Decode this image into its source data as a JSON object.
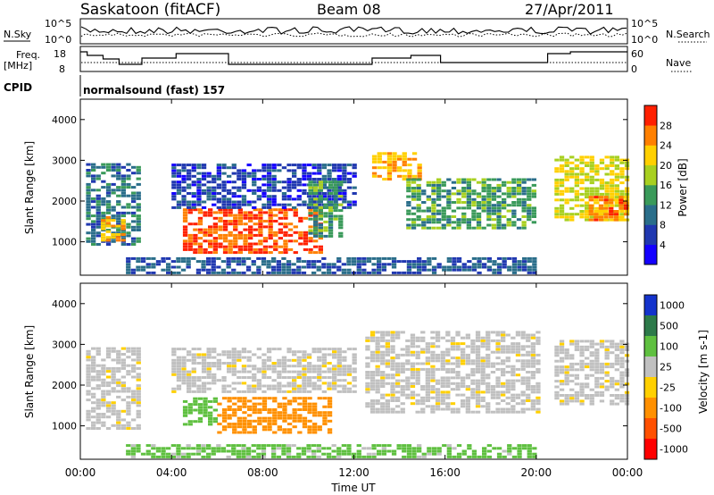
{
  "header": {
    "station": "Saskatoon (fitACF)",
    "beam": "Beam 08",
    "date": "27/Apr/2011"
  },
  "noise_panel": {
    "left_label": "N.Sky",
    "right_label": "N.Search",
    "ticks": [
      "10^5",
      "10^0"
    ]
  },
  "freq_panel": {
    "left_label_1": "Freq.",
    "left_label_2": "[MHz]",
    "left_ticks": [
      "18",
      "8"
    ],
    "right_label": "Nave",
    "right_ticks": [
      "60",
      "0"
    ]
  },
  "cpid": {
    "label": "CPID",
    "value": "normalsound (fast) 157"
  },
  "chart_data": [
    {
      "type": "heatmap",
      "title": "",
      "quantity": "Power",
      "unit": "[dB]",
      "colorbar_label": "Power [dB]",
      "xlabel": "Time UT",
      "ylabel": "Slant Range [km]",
      "xlim": [
        0,
        24
      ],
      "ylim": [
        180,
        4500
      ],
      "y_ticks": [
        "1000",
        "2000",
        "3000",
        "4000"
      ],
      "colorbar_ticks": [
        "4",
        "8",
        "12",
        "16",
        "20",
        "24",
        "28"
      ],
      "colorbar_colors": [
        "#1400ff",
        "#2038b0",
        "#2a6e8a",
        "#3a9a5a",
        "#a8d020",
        "#ffd000",
        "#ff8000",
        "#ff2000"
      ],
      "regions": [
        {
          "t0": 0.25,
          "t1": 2.6,
          "r0": 900,
          "r1": 2900,
          "level": 10
        },
        {
          "t0": 0.9,
          "t1": 2.0,
          "r0": 1000,
          "r1": 1600,
          "level": 24
        },
        {
          "t0": 4.5,
          "t1": 10.5,
          "r0": 700,
          "r1": 1800,
          "level": 28
        },
        {
          "t0": 4.0,
          "t1": 12.0,
          "r0": 1800,
          "r1": 2900,
          "level": 6
        },
        {
          "t0": 10.0,
          "t1": 11.5,
          "r0": 1100,
          "r1": 2500,
          "level": 14
        },
        {
          "t0": 12.8,
          "t1": 14.8,
          "r0": 2500,
          "r1": 3200,
          "level": 24
        },
        {
          "t0": 14.3,
          "t1": 19.8,
          "r0": 1300,
          "r1": 2500,
          "level": 14
        },
        {
          "t0": 20.8,
          "t1": 24.0,
          "r0": 1500,
          "r1": 3100,
          "level": 20
        },
        {
          "t0": 22.3,
          "t1": 24.0,
          "r0": 1500,
          "r1": 2100,
          "level": 26
        },
        {
          "t0": 2.0,
          "t1": 20.0,
          "r0": 200,
          "r1": 600,
          "level": 8
        }
      ]
    },
    {
      "type": "heatmap",
      "title": "",
      "quantity": "Velocity",
      "unit": "[m s^-1]",
      "colorbar_label": "Velocity [m s-1]",
      "xlabel": "Time UT",
      "ylabel": "Slant Range [km]",
      "xlim": [
        0,
        24
      ],
      "ylim": [
        180,
        4500
      ],
      "x_ticks": [
        "00:00",
        "04:00",
        "08:00",
        "12:00",
        "16:00",
        "20:00",
        "00:00"
      ],
      "y_ticks": [
        "1000",
        "2000",
        "3000",
        "4000"
      ],
      "colorbar_ticks": [
        "1000",
        "500",
        "100",
        "25",
        "-25",
        "-100",
        "-500",
        "-1000"
      ],
      "colorbar_colors": [
        "#1433cc",
        "#2d7a4a",
        "#5fc040",
        "#c0c0c0",
        "#ffd000",
        "#ff9000",
        "#ff5000",
        "#ff0000"
      ],
      "regions": [
        {
          "t0": 0.25,
          "t1": 2.6,
          "r0": 900,
          "r1": 2900,
          "value": 0
        },
        {
          "t0": 4.5,
          "t1": 6.0,
          "r0": 1000,
          "r1": 1700,
          "value": 120
        },
        {
          "t0": 6.0,
          "t1": 11.0,
          "r0": 800,
          "r1": 1700,
          "value": -150
        },
        {
          "t0": 4.0,
          "t1": 12.0,
          "r0": 1800,
          "r1": 2900,
          "value": 0
        },
        {
          "t0": 12.5,
          "t1": 20.0,
          "r0": 1300,
          "r1": 3300,
          "value": 0
        },
        {
          "t0": 20.8,
          "t1": 24.0,
          "r0": 1500,
          "r1": 3100,
          "value": 0
        },
        {
          "t0": 2.0,
          "t1": 20.0,
          "r0": 200,
          "r1": 500,
          "value": 80
        }
      ]
    }
  ]
}
